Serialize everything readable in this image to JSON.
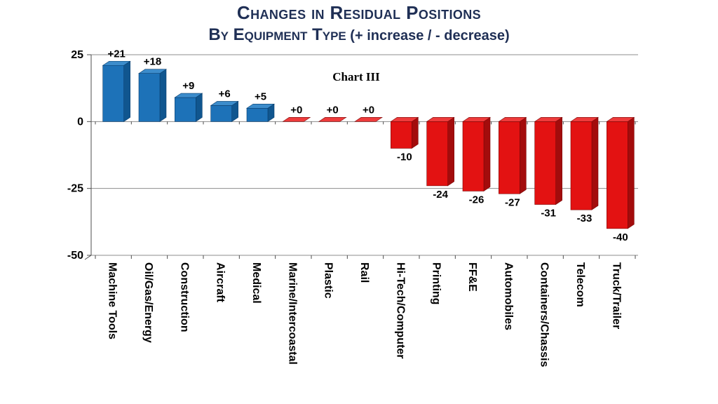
{
  "title": {
    "line1": "Changes in Residual Positions",
    "line2_smallcaps": "By Equipment Type",
    "line2_suffix": " (+ increase / - decrease)",
    "color": "#1f2f55"
  },
  "chart_data": {
    "type": "bar",
    "title": "Changes in Residual Positions by Equipment Type (+ increase / - decrease)",
    "annotation": "Chart III",
    "categories": [
      "Machine Tools",
      "Oil/Gas/Energy",
      "Construction",
      "Aircraft",
      "Medical",
      "Marine/Intercoastal",
      "Plastic",
      "Rail",
      "Hi-Tech/Computer",
      "Printing",
      "FF&E",
      "Automobiles",
      "Containers/Chassis",
      "Telecom",
      "Truck/Trailer"
    ],
    "values": [
      21,
      18,
      9,
      6,
      5,
      0,
      0,
      0,
      -10,
      -24,
      -26,
      -27,
      -31,
      -33,
      -40
    ],
    "labels": [
      "+21",
      "+18",
      "+9",
      "+6",
      "+5",
      "+0",
      "+0",
      "+0",
      "-10",
      "-24",
      "-26",
      "-27",
      "-31",
      "-33",
      "-40"
    ],
    "ylim": [
      -50,
      25
    ],
    "yticks": [
      25,
      0,
      -25,
      -50
    ],
    "grid": true,
    "legend": false,
    "bar_style": "3d",
    "colors": {
      "positive": {
        "front": "#1d72b8",
        "side": "#10568f",
        "top": "#3c8ccb",
        "edge": "#0b3f6e"
      },
      "negative": {
        "front": "#e31212",
        "side": "#a30c0c",
        "top": "#ee3b3b",
        "edge": "#7c0808"
      },
      "gridline": "#8c8c8c",
      "axis": "#4d4d4d",
      "label": "#000000"
    }
  }
}
